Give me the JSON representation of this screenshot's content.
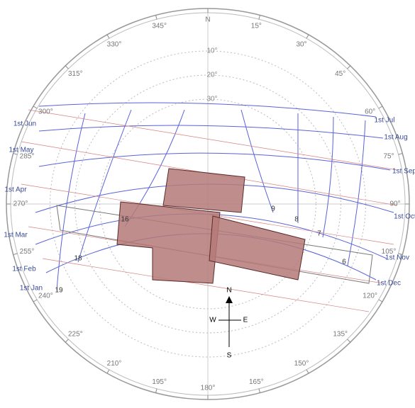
{
  "compass_rose": {
    "north": "N",
    "west": "W",
    "east": "E",
    "south": "S"
  },
  "azimuth_labels": [
    {
      "value": 0,
      "label": "N"
    },
    {
      "value": 15,
      "label": "15°"
    },
    {
      "value": 30,
      "label": "30°"
    },
    {
      "value": 45,
      "label": "45°"
    },
    {
      "value": 60,
      "label": "60°"
    },
    {
      "value": 75,
      "label": "75°"
    },
    {
      "value": 90,
      "label": "90°"
    },
    {
      "value": 105,
      "label": "105°"
    },
    {
      "value": 120,
      "label": "120°"
    },
    {
      "value": 135,
      "label": "135°"
    },
    {
      "value": 150,
      "label": "150°"
    },
    {
      "value": 165,
      "label": "165°"
    },
    {
      "value": 180,
      "label": "180°"
    },
    {
      "value": 195,
      "label": "195°"
    },
    {
      "value": 210,
      "label": "210°"
    },
    {
      "value": 225,
      "label": "225°"
    },
    {
      "value": 240,
      "label": "240°"
    },
    {
      "value": 255,
      "label": "255°"
    },
    {
      "value": 270,
      "label": "270°"
    },
    {
      "value": 285,
      "label": "285°"
    },
    {
      "value": 300,
      "label": "300°"
    },
    {
      "value": 315,
      "label": "315°"
    },
    {
      "value": 330,
      "label": "330°"
    },
    {
      "value": 345,
      "label": "345°"
    }
  ],
  "altitude_labels": [
    {
      "value": 10,
      "label": "10°"
    },
    {
      "value": 20,
      "label": "20°"
    },
    {
      "value": 30,
      "label": "30°"
    }
  ],
  "month_labels": [
    "1st Jun",
    "1st May",
    "1st Apr",
    "1st Mar",
    "1st Feb",
    "1st Jan",
    "1st Jul",
    "1st Aug",
    "1st Sep",
    "1st Oct",
    "1st Nov",
    "1st Dec"
  ],
  "hour_labels": [
    19,
    18,
    16,
    9,
    8,
    7,
    6
  ]
}
